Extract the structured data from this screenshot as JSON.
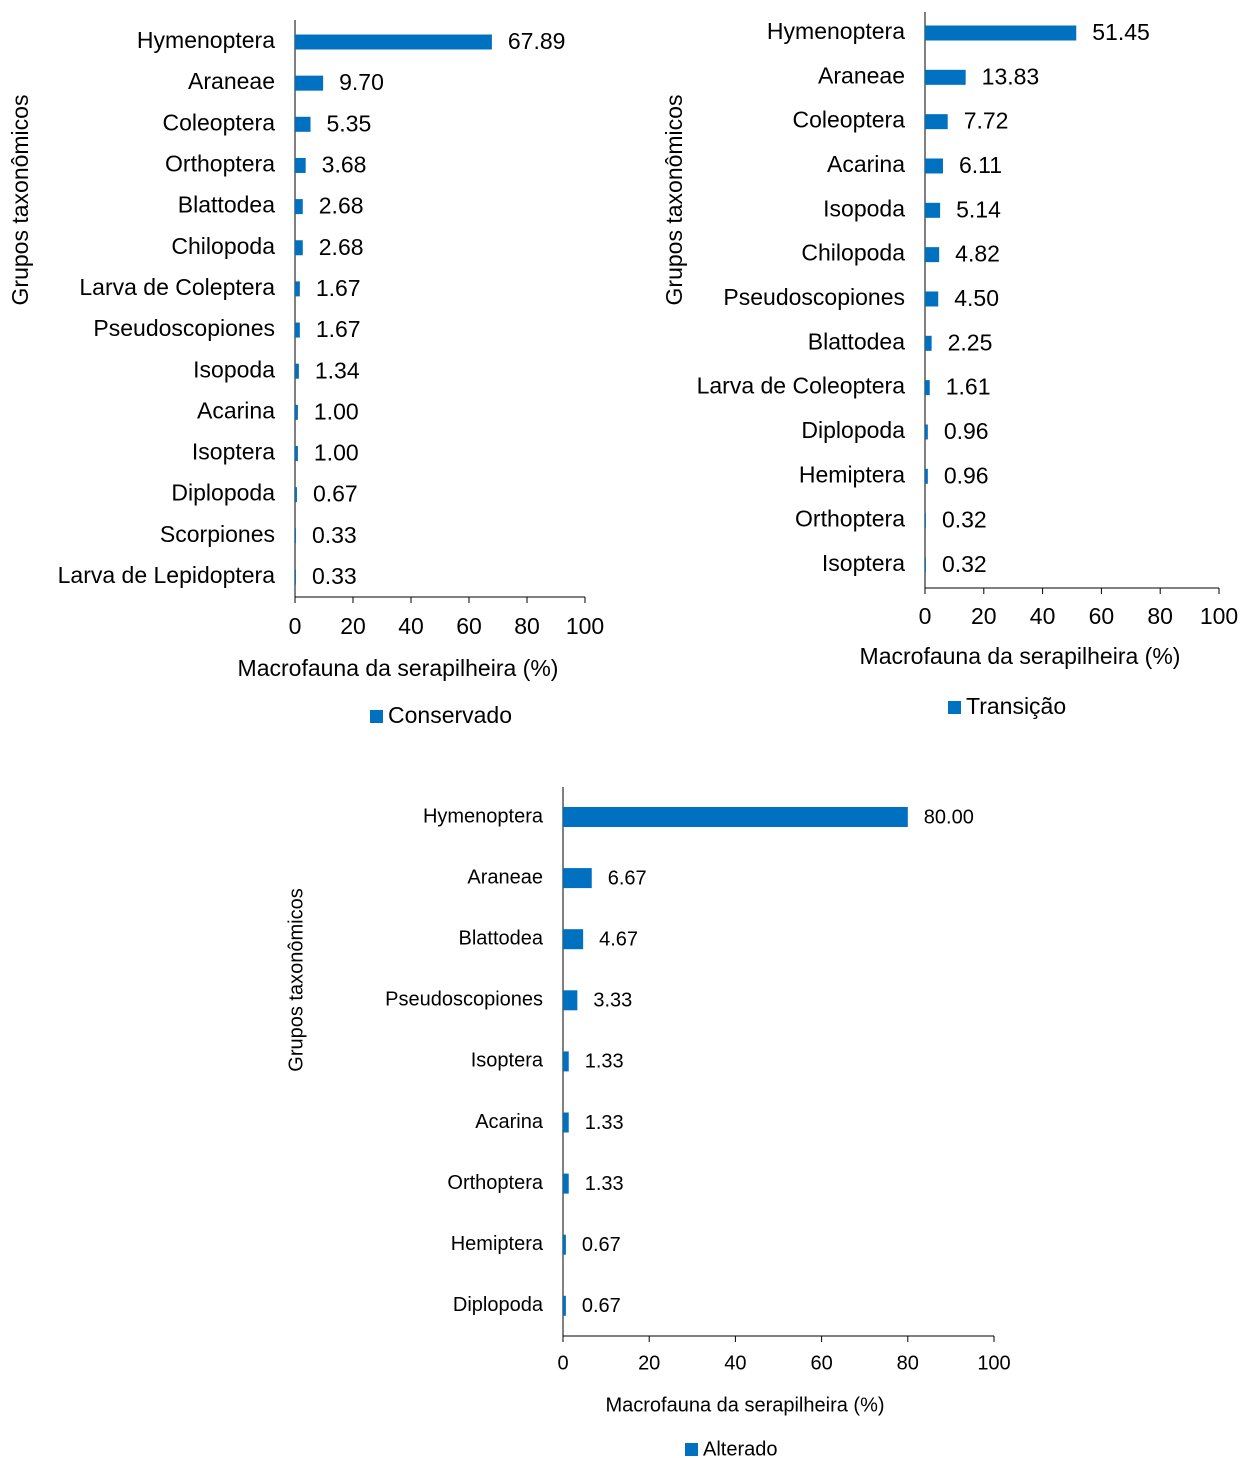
{
  "chart_data": [
    {
      "type": "bar",
      "orientation": "horizontal",
      "ylabel": "Grupos taxonômicos",
      "xlabel": "Macrofauna da serapilheira (%)",
      "categories": [
        "Hymenoptera",
        "Araneae",
        "Coleoptera",
        "Orthoptera",
        "Blattodea",
        "Chilopoda",
        "Larva de Coleptera",
        "Pseudoscopiones",
        "Isopoda",
        "Acarina",
        "Isoptera",
        "Diplopoda",
        "Scorpiones",
        "Larva de Lepidoptera"
      ],
      "series": [
        {
          "name": "Conservado",
          "color": "#0070c0",
          "values": [
            67.89,
            9.7,
            5.35,
            3.68,
            2.68,
            2.68,
            1.67,
            1.67,
            1.34,
            1.0,
            1.0,
            0.67,
            0.33,
            0.33
          ],
          "value_labels": [
            "67.89",
            "9.70",
            "5.35",
            "3.68",
            "2.68",
            "2.68",
            "1.67",
            "1.67",
            "1.34",
            "1.00",
            "1.00",
            "0.67",
            "0.33",
            "0.33"
          ]
        }
      ],
      "xlim": [
        0,
        100
      ],
      "xticks": [
        0,
        20,
        40,
        60,
        80,
        100
      ],
      "legend": "bottom"
    },
    {
      "type": "bar",
      "orientation": "horizontal",
      "ylabel": "Grupos taxonômicos",
      "xlabel": "Macrofauna da serapilheira (%)",
      "categories": [
        "Hymenoptera",
        "Araneae",
        "Coleoptera",
        "Acarina",
        "Isopoda",
        "Chilopoda",
        "Pseudoscopiones",
        "Blattodea",
        "Larva de Coleoptera",
        "Diplopoda",
        "Hemiptera",
        "Orthoptera",
        "Isoptera"
      ],
      "series": [
        {
          "name": "Transição",
          "color": "#0070c0",
          "values": [
            51.45,
            13.83,
            7.72,
            6.11,
            5.14,
            4.82,
            4.5,
            2.25,
            1.61,
            0.96,
            0.96,
            0.32,
            0.32
          ],
          "value_labels": [
            "51.45",
            "13.83",
            "7.72",
            "6.11",
            "5.14",
            "4.82",
            "4.50",
            "2.25",
            "1.61",
            "0.96",
            "0.96",
            "0.32",
            "0.32"
          ]
        }
      ],
      "xlim": [
        0,
        100
      ],
      "xticks": [
        0,
        20,
        40,
        60,
        80,
        100
      ],
      "legend": "bottom"
    },
    {
      "type": "bar",
      "orientation": "horizontal",
      "ylabel": "Grupos taxonômicos",
      "xlabel": "Macrofauna da serapilheira (%)",
      "categories": [
        "Hymenoptera",
        "Araneae",
        "Blattodea",
        "Pseudoscopiones",
        "Isoptera",
        "Acarina",
        "Orthoptera",
        "Hemiptera",
        "Diplopoda"
      ],
      "series": [
        {
          "name": "Alterado",
          "color": "#0070c0",
          "values": [
            80.0,
            6.67,
            4.67,
            3.33,
            1.33,
            1.33,
            1.33,
            0.67,
            0.67
          ],
          "value_labels": [
            "80.00",
            "6.67",
            "4.67",
            "3.33",
            "1.33",
            "1.33",
            "1.33",
            "0.67",
            "0.67"
          ]
        }
      ],
      "xlim": [
        0,
        100
      ],
      "xticks": [
        0,
        20,
        40,
        60,
        80,
        100
      ],
      "legend": "bottom"
    }
  ]
}
